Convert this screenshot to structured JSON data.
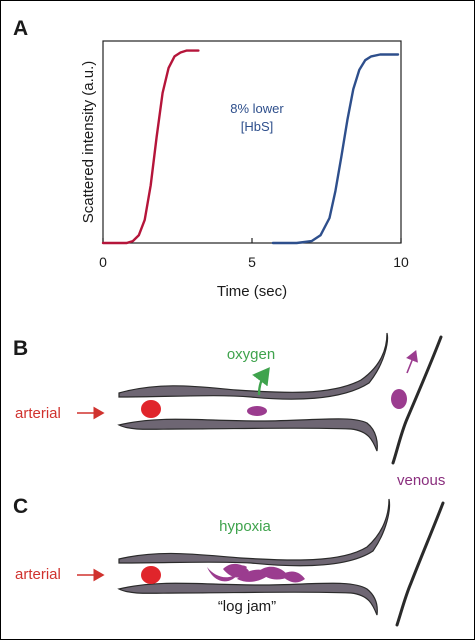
{
  "panels": {
    "a": {
      "letter": "A",
      "chart_data": {
        "type": "line",
        "xlabel": "Time (sec)",
        "ylabel": "Scattered intensity (a.u.)",
        "xlim": [
          0,
          10
        ],
        "ylim": [
          0,
          1.05
        ],
        "xticks": [
          0,
          5,
          10
        ],
        "grid": false,
        "annotation": [
          "8% lower",
          "[HbS]"
        ],
        "series": [
          {
            "color": "#b5153a",
            "x": [
              0.0,
              0.8,
              1.0,
              1.2,
              1.4,
              1.6,
              1.8,
              2.0,
              2.2,
              2.4,
              2.6,
              2.8,
              3.0,
              3.2
            ],
            "y": [
              0.0,
              0.0,
              0.01,
              0.04,
              0.12,
              0.3,
              0.55,
              0.78,
              0.91,
              0.97,
              0.99,
              1.0,
              1.0,
              1.0
            ]
          },
          {
            "color": "#2e4f8c",
            "x": [
              5.7,
              6.5,
              7.0,
              7.3,
              7.6,
              7.8,
              8.0,
              8.2,
              8.4,
              8.6,
              8.8,
              9.0,
              9.3,
              9.6,
              9.9
            ],
            "y": [
              0.0,
              0.0,
              0.01,
              0.04,
              0.13,
              0.27,
              0.45,
              0.64,
              0.8,
              0.9,
              0.95,
              0.97,
              0.98,
              0.98,
              0.98
            ]
          }
        ]
      }
    },
    "b": {
      "letter": "B",
      "labels": {
        "arterial": "arterial",
        "oxygen": "oxygen",
        "venous": "venous"
      }
    },
    "c": {
      "letter": "C",
      "labels": {
        "arterial": "arterial",
        "hypoxia": "hypoxia",
        "log_jam": "“log jam”"
      }
    },
    "colors": {
      "vessel_fill": "#6e6673",
      "red_cell": "#e0252b",
      "sickle_cell": "#9b3c8f",
      "arrow_red": "#d0322e",
      "oxygen_green": "#3fa34d",
      "label_purple": "#8a2f7e"
    }
  }
}
